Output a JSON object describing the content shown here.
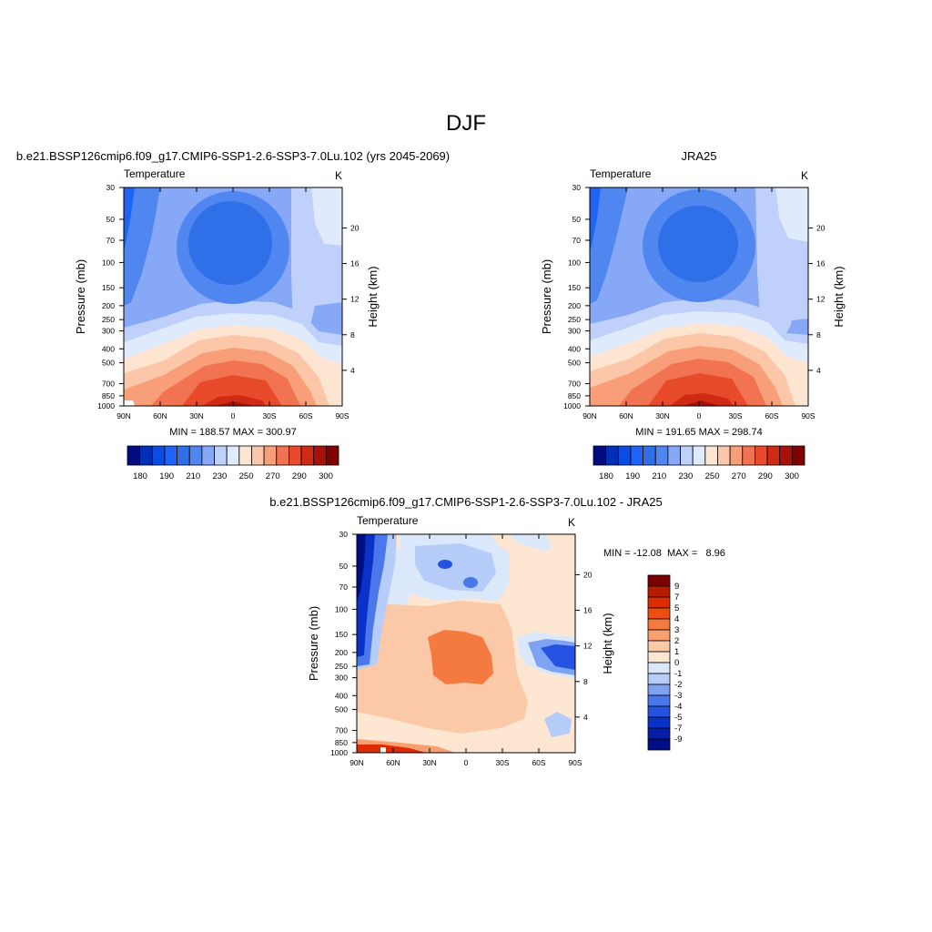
{
  "page": {
    "title": "DJF",
    "pressure_levels": [
      30,
      50,
      70,
      100,
      150,
      200,
      250,
      300,
      400,
      500,
      700,
      850,
      1000
    ],
    "height_ticks": [
      20,
      16,
      12,
      8,
      4
    ],
    "lat_ticks": [
      "90N",
      "60N",
      "30N",
      "0",
      "30S",
      "60S",
      "90S"
    ]
  },
  "chart_data": [
    {
      "type": "heatmap",
      "header": "b.e21.BSSP126cmip6.f09_g17.CMIP6-SSP1-2.6-SSP3-7.0Lu.102 (yrs 2045-2069)",
      "left_label": "Temperature",
      "right_label": "K",
      "ylabel": "Pressure (mb)",
      "ylabel_right": "Height (km)",
      "x_range": [
        90,
        -90
      ],
      "y_range_mb": [
        30,
        1000
      ],
      "y_scale": "log",
      "stats": "MIN = 188.57  MAX = 300.97",
      "min": 188.57,
      "max": 300.97,
      "colorbar": {
        "orientation": "horizontal",
        "labels": [
          "180",
          "190",
          "210",
          "230",
          "250",
          "270",
          "290",
          "300"
        ],
        "colors": [
          "#000c80",
          "#0030b8",
          "#0a4ce6",
          "#1e64f5",
          "#2f6fe8",
          "#4f86f0",
          "#86a8f6",
          "#bfd1fb",
          "#e0eafd",
          "#fde5d2",
          "#fbc7a8",
          "#f89f7a",
          "#f27352",
          "#e84a2c",
          "#cf2b14",
          "#a81208",
          "#800000"
        ]
      }
    },
    {
      "type": "heatmap",
      "header": "JRA25",
      "left_label": "Temperature",
      "right_label": "K",
      "ylabel": "Pressure (mb)",
      "ylabel_right": "Height (km)",
      "x_range": [
        90,
        -90
      ],
      "y_range_mb": [
        30,
        1000
      ],
      "y_scale": "log",
      "stats": "MIN = 191.65  MAX = 298.74",
      "min": 191.65,
      "max": 298.74,
      "colorbar": {
        "orientation": "horizontal",
        "labels": [
          "180",
          "190",
          "210",
          "230",
          "250",
          "270",
          "290",
          "300"
        ],
        "colors": [
          "#000c80",
          "#0030b8",
          "#0a4ce6",
          "#1e64f5",
          "#2f6fe8",
          "#4f86f0",
          "#86a8f6",
          "#bfd1fb",
          "#e0eafd",
          "#fde5d2",
          "#fbc7a8",
          "#f89f7a",
          "#f27352",
          "#e84a2c",
          "#cf2b14",
          "#a81208",
          "#800000"
        ]
      }
    },
    {
      "type": "heatmap",
      "header": "b.e21.BSSP126cmip6.f09_g17.CMIP6-SSP1-2.6-SSP3-7.0Lu.102 - JRA25",
      "left_label": "Temperature",
      "right_label": "K",
      "ylabel": "Pressure (mb)",
      "ylabel_right": "Height (km)",
      "x_range": [
        90,
        -90
      ],
      "y_range_mb": [
        30,
        1000
      ],
      "y_scale": "log",
      "stats": "MIN = -12.08  MAX =   8.96",
      "min": -12.08,
      "max": 8.96,
      "colorbar": {
        "orientation": "vertical",
        "labels": [
          "9",
          "7",
          "5",
          "4",
          "3",
          "2",
          "1",
          "0",
          "-1",
          "-2",
          "-3",
          "-4",
          "-5",
          "-7",
          "-9"
        ],
        "colors": [
          "#7a0000",
          "#b81c00",
          "#dc2c00",
          "#f04e10",
          "#f57a40",
          "#f8a070",
          "#fbc9a8",
          "#fde7d2",
          "#dbe7fb",
          "#b5cdf8",
          "#7fa3f3",
          "#4a78ec",
          "#2552e0",
          "#0a32c8",
          "#061ea8",
          "#000e85"
        ]
      }
    }
  ]
}
